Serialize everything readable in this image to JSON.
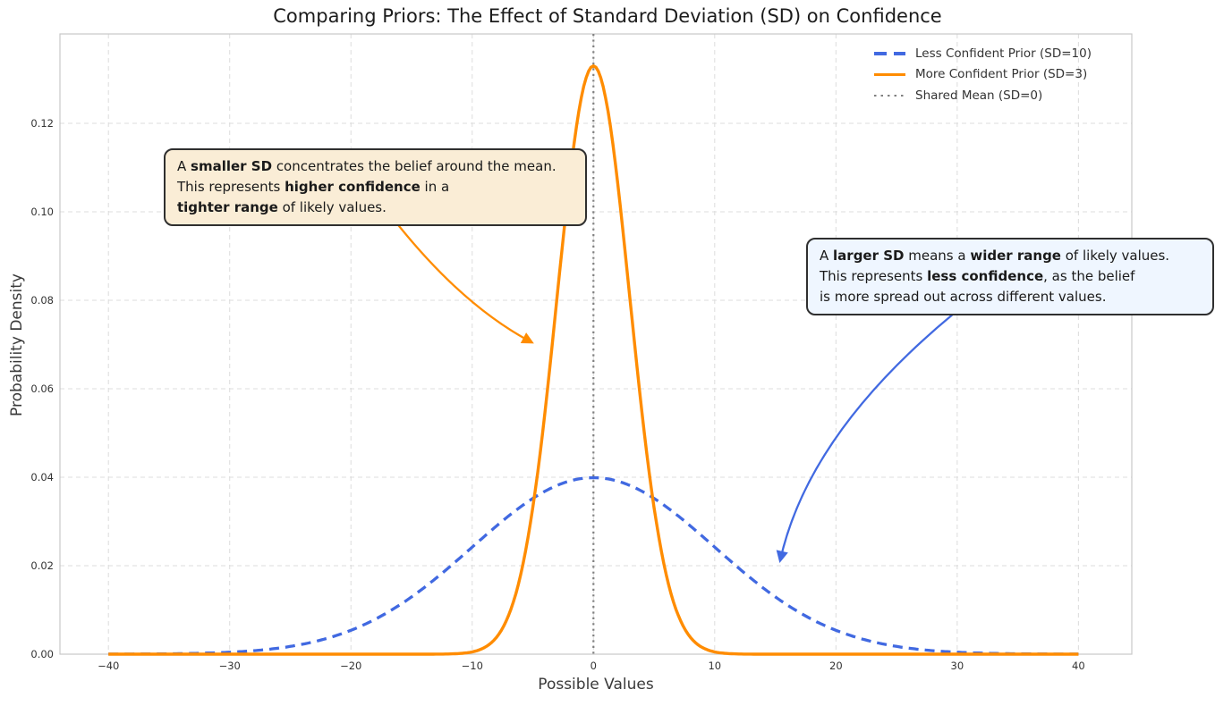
{
  "chart_data": {
    "type": "line",
    "title": "Comparing Priors: The Effect of Standard Deviation (SD) on Confidence",
    "xlabel": "Possible Values",
    "ylabel": "Probability Density",
    "xlim": [
      -44,
      44.4
    ],
    "ylim": [
      0,
      0.1402
    ],
    "x_ticks": [
      -40,
      -30,
      -20,
      -10,
      0,
      10,
      20,
      30,
      40
    ],
    "x_tick_labels": [
      "−40",
      "−30",
      "−20",
      "−10",
      "0",
      "10",
      "20",
      "30",
      "40"
    ],
    "y_ticks": [
      0.0,
      0.02,
      0.04,
      0.06,
      0.08,
      0.1,
      0.12
    ],
    "y_tick_labels": [
      "0.00",
      "0.02",
      "0.04",
      "0.06",
      "0.08",
      "0.10",
      "0.12"
    ],
    "grid": "dashed-both-axes",
    "legend_position": "upper right",
    "curve_x_range": [
      -40,
      40
    ],
    "series": [
      {
        "name": "Less Confident Prior (SD=10)",
        "distribution": "normal",
        "mean": 0,
        "sd": 10,
        "peak_density": 0.0399,
        "color": "#4169e1",
        "linestyle": "dashed",
        "linewidth": 3.3,
        "sample_x": [
          -40,
          -35,
          -30,
          -25,
          -20,
          -15,
          -10,
          -5,
          0,
          5,
          10,
          15,
          20,
          25,
          30,
          35,
          40
        ],
        "sample_y": [
          1e-05,
          9e-05,
          0.00044,
          0.00175,
          0.0054,
          0.01295,
          0.0242,
          0.03521,
          0.03989,
          0.03521,
          0.0242,
          0.01295,
          0.0054,
          0.00175,
          0.00044,
          9e-05,
          1e-05
        ]
      },
      {
        "name": "More Confident Prior (SD=3)",
        "distribution": "normal",
        "mean": 0,
        "sd": 3,
        "peak_density": 0.133,
        "color": "#ff8c00",
        "linestyle": "solid",
        "linewidth": 3.4,
        "sample_x": [
          -40,
          -35,
          -30,
          -25,
          -20,
          -15,
          -10,
          -5,
          0,
          5,
          10,
          15,
          20,
          25,
          30,
          35,
          40
        ],
        "sample_y": [
          0,
          0,
          0,
          0,
          0,
          0,
          0.00051,
          0.03317,
          0.13298,
          0.03317,
          0.00051,
          0,
          0,
          0,
          0,
          0,
          0
        ]
      }
    ],
    "mean_line": {
      "label": "Shared Mean (SD=0)",
      "x": 0,
      "color": "#808080",
      "linestyle": "dotted",
      "linewidth": 2.2
    }
  },
  "annotations": {
    "left_box": {
      "bg": "#faedd6",
      "border": "#2f2f2f",
      "lines": [
        [
          {
            "t": "A "
          },
          {
            "t": "smaller SD",
            "b": true
          },
          {
            "t": " concentrates the belief around the mean."
          }
        ],
        [
          {
            "t": "This represents "
          },
          {
            "t": "higher confidence",
            "b": true
          },
          {
            "t": " in a"
          }
        ],
        [
          {
            "t": "tighter range",
            "b": true
          },
          {
            "t": " of likely values."
          }
        ]
      ]
    },
    "right_box": {
      "bg": "#eff6ff",
      "border": "#2f2f2f",
      "lines": [
        [
          {
            "t": "A "
          },
          {
            "t": "larger SD",
            "b": true
          },
          {
            "t": " means a "
          },
          {
            "t": "wider range",
            "b": true
          },
          {
            "t": " of likely values."
          }
        ],
        [
          {
            "t": "This represents "
          },
          {
            "t": "less confidence",
            "b": true
          },
          {
            "t": ", as the belief"
          }
        ],
        [
          {
            "t": "is more spread out across different values."
          }
        ]
      ]
    },
    "arrows": [
      {
        "name": "arrow-to-narrow-curve",
        "color": "#ff8c00",
        "from": [
          -16.1,
          0.097
        ],
        "control": [
          -10.7,
          0.0786
        ],
        "to": [
          -5.1,
          0.0705
        ]
      },
      {
        "name": "arrow-to-wide-curve",
        "color": "#4169e1",
        "from": [
          29.6,
          0.0767
        ],
        "control": [
          17.7,
          0.0497
        ],
        "to": [
          15.4,
          0.0212
        ]
      }
    ]
  },
  "style": {
    "grid_color": "#dcdcdc",
    "spine_color": "#c8c8c8",
    "background": "#ffffff"
  }
}
